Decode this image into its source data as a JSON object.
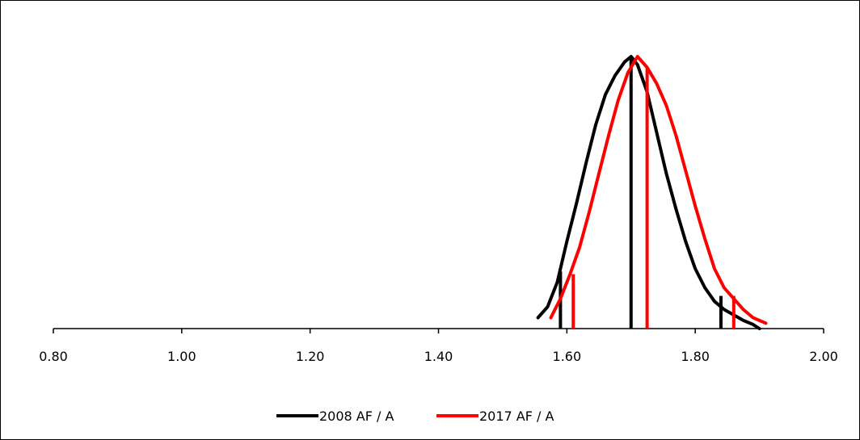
{
  "chart_data": {
    "type": "line",
    "title": "",
    "xlabel": "",
    "ylabel": "",
    "xlim": [
      0.8,
      2.0
    ],
    "ylim": [
      0,
      1
    ],
    "xticks": [
      "0.80",
      "1.00",
      "1.20",
      "1.40",
      "1.60",
      "1.80",
      "2.00"
    ],
    "grid": false,
    "legend_position": "bottom",
    "series": [
      {
        "name": "2008 AF / A",
        "color": "#000000",
        "x": [
          1.555,
          1.57,
          1.585,
          1.6,
          1.615,
          1.63,
          1.645,
          1.66,
          1.675,
          1.69,
          1.7,
          1.71,
          1.725,
          1.74,
          1.755,
          1.77,
          1.785,
          1.8,
          1.815,
          1.83,
          1.845,
          1.86,
          1.875,
          1.89,
          1.9
        ],
        "y": [
          0.04,
          0.08,
          0.17,
          0.32,
          0.46,
          0.61,
          0.75,
          0.86,
          0.93,
          0.98,
          1.0,
          0.97,
          0.87,
          0.72,
          0.57,
          0.44,
          0.32,
          0.22,
          0.15,
          0.1,
          0.07,
          0.05,
          0.03,
          0.015,
          0.0
        ],
        "markers": [
          {
            "x": 1.59,
            "y": 0.21
          },
          {
            "x": 1.7,
            "y": 1.0
          },
          {
            "x": 1.84,
            "y": 0.12
          }
        ]
      },
      {
        "name": "2017 AF / A",
        "color": "#ff0000",
        "x": [
          1.575,
          1.59,
          1.605,
          1.62,
          1.635,
          1.65,
          1.665,
          1.68,
          1.695,
          1.71,
          1.725,
          1.74,
          1.755,
          1.77,
          1.785,
          1.8,
          1.815,
          1.83,
          1.845,
          1.86,
          1.875,
          1.89,
          1.91
        ],
        "y": [
          0.04,
          0.11,
          0.2,
          0.3,
          0.43,
          0.57,
          0.71,
          0.84,
          0.94,
          1.0,
          0.96,
          0.9,
          0.82,
          0.71,
          0.58,
          0.45,
          0.33,
          0.22,
          0.15,
          0.11,
          0.07,
          0.04,
          0.02
        ],
        "markers": [
          {
            "x": 1.61,
            "y": 0.2
          },
          {
            "x": 1.725,
            "y": 0.96
          },
          {
            "x": 1.86,
            "y": 0.12
          }
        ]
      }
    ]
  }
}
